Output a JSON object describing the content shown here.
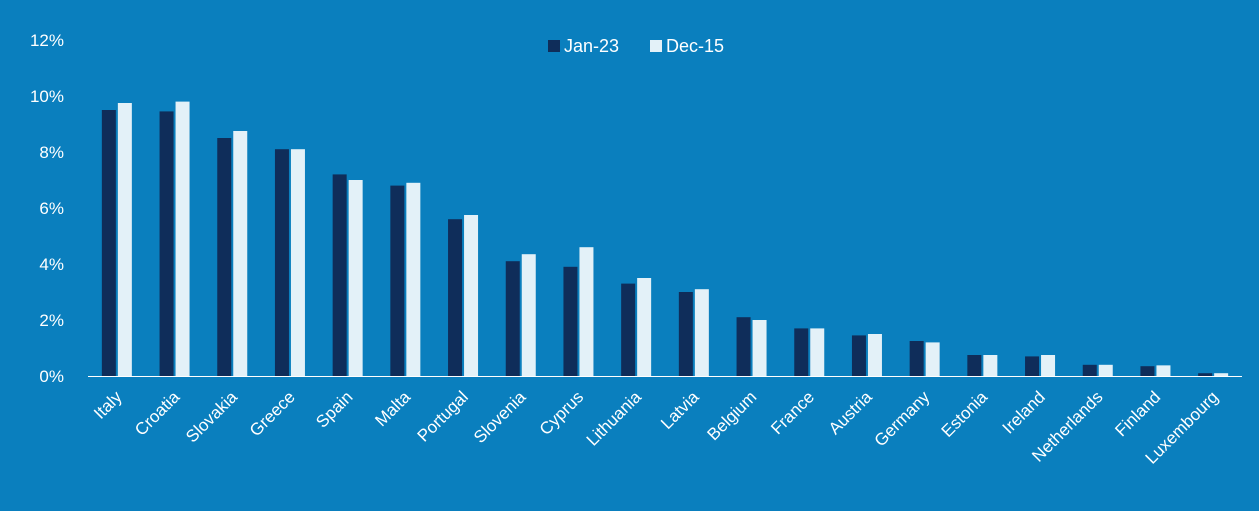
{
  "colors": {
    "background": "#0A7FBE",
    "series_dark": "#0F2D5A",
    "series_light": "#E3F1F8",
    "axis": "#ffffff"
  },
  "chart_data": {
    "type": "bar",
    "title": "",
    "xlabel": "",
    "ylabel": "",
    "ylim": [
      0,
      12
    ],
    "yticks": [
      "0%",
      "2%",
      "4%",
      "6%",
      "8%",
      "10%",
      "12%"
    ],
    "grid": false,
    "legend_position": "top-center",
    "categories": [
      "Italy",
      "Croatia",
      "Slovakia",
      "Greece",
      "Spain",
      "Malta",
      "Portugal",
      "Slovenia",
      "Cyprus",
      "Lithuania",
      "Latvia",
      "Belgium",
      "France",
      "Austria",
      "Germany",
      "Estonia",
      "Ireland",
      "Netherlands",
      "Finland",
      "Luxembourg"
    ],
    "series": [
      {
        "name": "Jan-23",
        "color": "#0F2D5A",
        "values": [
          9.5,
          9.45,
          8.5,
          8.1,
          7.2,
          6.8,
          5.6,
          4.1,
          3.9,
          3.3,
          3.0,
          2.1,
          1.7,
          1.45,
          1.25,
          0.75,
          0.7,
          0.4,
          0.35,
          0.1
        ]
      },
      {
        "name": "Dec-15",
        "color": "#E3F1F8",
        "values": [
          9.75,
          9.8,
          8.75,
          8.1,
          7.0,
          6.9,
          5.75,
          4.35,
          4.6,
          3.5,
          3.1,
          2.0,
          1.7,
          1.5,
          1.2,
          0.75,
          0.75,
          0.4,
          0.38,
          0.1
        ]
      }
    ]
  }
}
